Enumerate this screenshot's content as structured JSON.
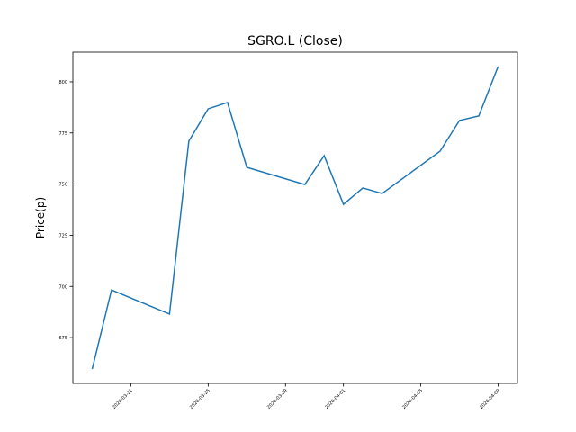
{
  "chart_data": {
    "type": "line",
    "title": "SGRO.L (Close)",
    "y_label": "Price(p)",
    "x": [
      "2020-03-19",
      "2020-03-20",
      "2020-03-23",
      "2020-03-24",
      "2020-03-25",
      "2020-03-26",
      "2020-03-27",
      "2020-03-30",
      "2020-03-31",
      "2020-04-01",
      "2020-04-02",
      "2020-04-03",
      "2020-04-06",
      "2020-04-07",
      "2020-04-08",
      "2020-04-09"
    ],
    "series": [
      {
        "name": "Close",
        "color": "#1f77b4",
        "values": [
          659.6,
          698.3,
          686.5,
          771,
          786.8,
          789.9,
          758.2,
          749.8,
          763.9,
          740.1,
          748.1,
          745.4,
          766.1,
          781.1,
          783.3,
          807.5
        ]
      }
    ],
    "xlim": [
      "2020-03-18",
      "2020-04-10"
    ],
    "xticks": [
      "2020-03-21",
      "2020-03-25",
      "2020-03-29",
      "2020-04-01",
      "2020-04-05",
      "2020-04-09"
    ],
    "ylim": [
      652.6,
      814.5
    ],
    "yticks": [
      675,
      700,
      725,
      750,
      775,
      800
    ]
  }
}
